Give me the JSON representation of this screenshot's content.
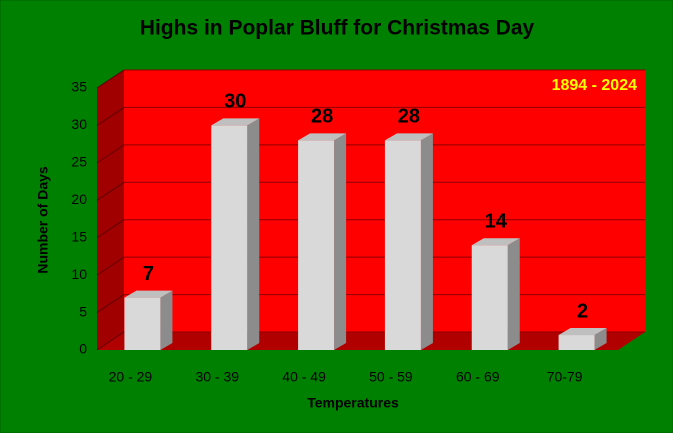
{
  "chart_data": {
    "type": "bar3d",
    "title": "Highs in Poplar Bluff for Christmas Day",
    "annotation": "1894 - 2024",
    "xlabel": "Temperatures",
    "ylabel": "Number of Days",
    "categories": [
      "20 - 29",
      "30 - 39",
      "40 - 49",
      "50 - 59",
      "60 - 69",
      "70-79"
    ],
    "values": [
      7,
      30,
      28,
      28,
      14,
      2
    ],
    "color": "#d9d9d9",
    "ylim": [
      0,
      35
    ],
    "yticks": [
      0,
      5,
      10,
      15,
      20,
      25,
      30,
      35
    ],
    "grid": true
  }
}
